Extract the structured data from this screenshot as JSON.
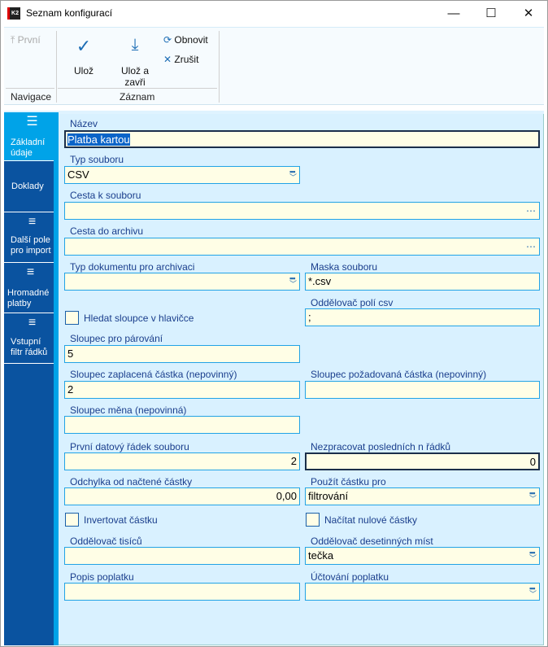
{
  "window": {
    "title": "Seznam konfigurací",
    "logo": "K2",
    "minimize": "—",
    "maximize": "☐",
    "close": "✕"
  },
  "ribbon": {
    "navigace": {
      "first_label": "První",
      "group_label": "Navigace"
    },
    "zaznam": {
      "save_label": "Ulož",
      "save_close_label_1": "Ulož a",
      "save_close_label_2": "zavři",
      "refresh_label": "Obnovit",
      "cancel_label": "Zrušit",
      "group_label": "Záznam"
    }
  },
  "sidebar": {
    "items": [
      {
        "label": "Základní údaje",
        "icon": "list-icon",
        "active": true
      },
      {
        "label": "Doklady",
        "icon": "",
        "active": false
      },
      {
        "label": "Další pole pro import",
        "icon": "lines-icon",
        "active": false
      },
      {
        "label": "Hromadné platby",
        "icon": "lines-icon",
        "active": false
      },
      {
        "label": "Vstupní filtr řádků",
        "icon": "lines-icon",
        "active": false
      }
    ]
  },
  "form": {
    "nazev": {
      "label": "Název",
      "value": "Platba kartou"
    },
    "typ_souboru": {
      "label": "Typ souboru",
      "value": "CSV"
    },
    "cesta_k_souboru": {
      "label": "Cesta k souboru",
      "value": ""
    },
    "cesta_do_archivu": {
      "label": "Cesta do archivu",
      "value": ""
    },
    "typ_dokumentu": {
      "label": "Typ dokumentu pro archivaci",
      "value": ""
    },
    "maska_souboru": {
      "label": "Maska souboru",
      "value": "*.csv"
    },
    "hledat_sloupce": {
      "label": "Hledat sloupce v hlavičce",
      "checked": false
    },
    "oddelovac_poli": {
      "label": "Oddělovač polí csv",
      "value": ";"
    },
    "sloupec_parovani": {
      "label": "Sloupec pro párování",
      "value": "5"
    },
    "sloupec_zaplacena": {
      "label": "Sloupec zaplacená částka (nepovinný)",
      "value": "2"
    },
    "sloupec_pozadovana": {
      "label": "Sloupec požadovaná částka (nepovinný)",
      "value": ""
    },
    "sloupec_mena": {
      "label": "Sloupec měna (nepovinná)",
      "value": ""
    },
    "prvni_radek": {
      "label": "První datový řádek souboru",
      "value": "2"
    },
    "nezpracovat": {
      "label": "Nezpracovat posledních n řádků",
      "value": "0"
    },
    "odchylka": {
      "label": "Odchylka od načtené částky",
      "value": "0,00"
    },
    "pouzit_castku": {
      "label": "Použít částku pro",
      "value": "filtrování"
    },
    "invertovat": {
      "label": "Invertovat částku",
      "checked": false
    },
    "nacitat_nulove": {
      "label": "Načítat nulové částky",
      "checked": false
    },
    "oddelovac_tisicu": {
      "label": "Oddělovač tisíců",
      "value": ""
    },
    "oddelovac_desetinnych": {
      "label": "Oddělovač desetinných míst",
      "value": "tečka"
    },
    "popis_poplatku": {
      "label": "Popis poplatku",
      "value": ""
    },
    "uctovani_poplatku": {
      "label": "Účtování poplatku",
      "value": ""
    }
  },
  "colors": {
    "sidebar": "#0a53a0",
    "sidebar_active": "#00a3e8",
    "form_bg": "#d9f1ff",
    "input_bg": "#fffee6",
    "input_border": "#22a3e6",
    "label": "#1a3e8c"
  }
}
